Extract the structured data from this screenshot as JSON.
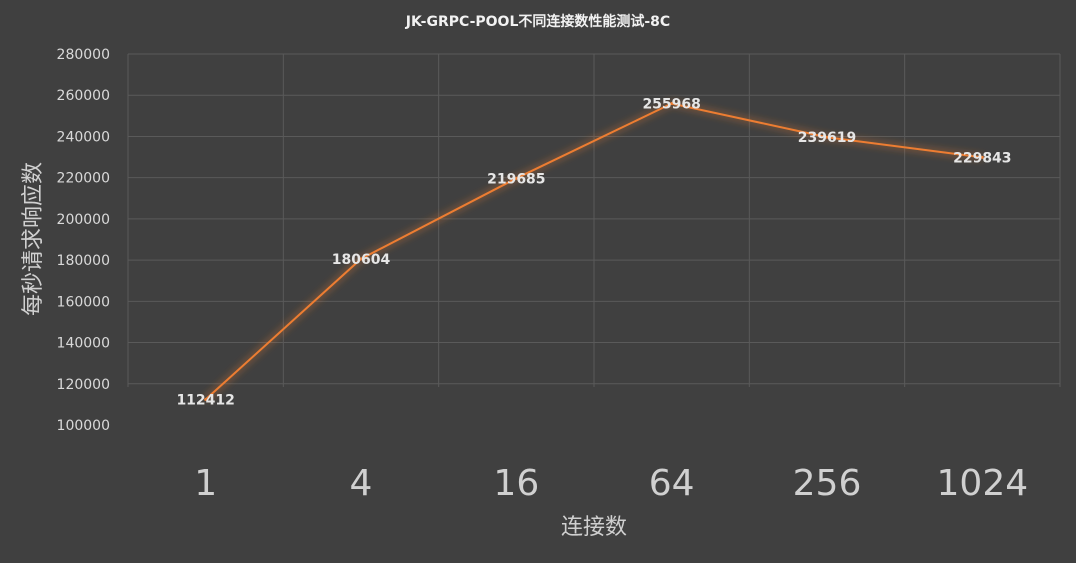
{
  "chart_data": {
    "type": "line",
    "title": "JK-GRPC-POOL不同连接数性能测试-8C",
    "xlabel": "连接数",
    "ylabel": "每秒请求响应数",
    "categories": [
      "1",
      "4",
      "16",
      "64",
      "256",
      "1024"
    ],
    "series": [
      {
        "values": [
          112412,
          180604,
          219685,
          255968,
          239619,
          229843
        ],
        "color": "#ed7d31"
      }
    ],
    "ylim": [
      100000,
      280000
    ],
    "yticks": [
      100000,
      120000,
      140000,
      160000,
      180000,
      200000,
      220000,
      240000,
      260000,
      280000
    ],
    "ytick_labels": [
      "100000",
      "120000",
      "140000",
      "160000",
      "180000",
      "200000",
      "220000",
      "240000",
      "260000",
      "280000"
    ],
    "data_labels": [
      "112412",
      "180604",
      "219685",
      "255968",
      "239619",
      "229843"
    ],
    "grid": true,
    "legend": "none"
  }
}
